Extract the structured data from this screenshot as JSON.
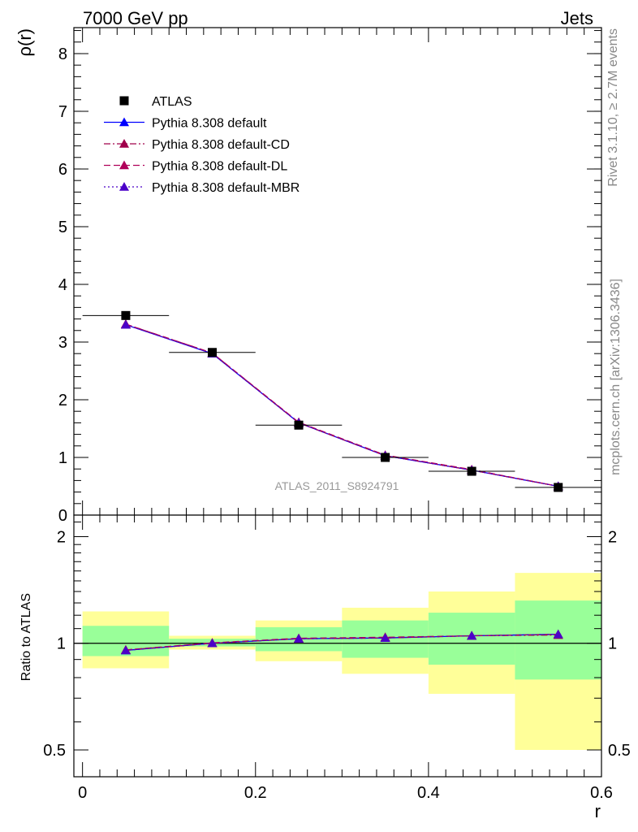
{
  "header": {
    "left": "7000 GeV pp",
    "right": "Jets"
  },
  "side_labels": {
    "top": "Rivet 3.1.10, ≥ 2.7M events",
    "bottom": "mcplots.cern.ch [arXiv:1306.3436]"
  },
  "watermark": "ATLAS_2011_S8924791",
  "legend": [
    {
      "label": "ATLAS",
      "color": "#000000",
      "marker": "square",
      "line": "none"
    },
    {
      "label": "Pythia 8.308 default",
      "color": "#0000ff",
      "marker": "triangle",
      "line": "solid"
    },
    {
      "label": "Pythia 8.308 default-CD",
      "color": "#a0004b",
      "marker": "triangle",
      "line": "dashdot"
    },
    {
      "label": "Pythia 8.308 default-DL",
      "color": "#b0005a",
      "marker": "triangle",
      "line": "dashed"
    },
    {
      "label": "Pythia 8.308 default-MBR",
      "color": "#4b00c8",
      "marker": "triangle",
      "line": "dotted"
    }
  ],
  "chart_data": [
    {
      "type": "line",
      "panel": "main",
      "ylabel": "ρ(r)",
      "xlim": [
        -0.01,
        0.6
      ],
      "ylim": [
        0,
        8.45
      ],
      "yticks": [
        0,
        1,
        2,
        3,
        4,
        5,
        6,
        7,
        8
      ],
      "x": [
        0.05,
        0.15,
        0.25,
        0.35,
        0.45,
        0.55
      ],
      "xerr": 0.05,
      "series": [
        {
          "name": "ATLAS",
          "values": [
            3.46,
            2.82,
            1.56,
            1.0,
            0.76,
            0.48
          ]
        },
        {
          "name": "Pythia 8.308 default",
          "values": [
            3.3,
            2.8,
            1.6,
            1.03,
            0.78,
            0.5
          ]
        },
        {
          "name": "Pythia 8.308 default-CD",
          "values": [
            3.31,
            2.81,
            1.6,
            1.03,
            0.78,
            0.5
          ]
        },
        {
          "name": "Pythia 8.308 default-DL",
          "values": [
            3.31,
            2.81,
            1.61,
            1.04,
            0.79,
            0.5
          ]
        },
        {
          "name": "Pythia 8.308 default-MBR",
          "values": [
            3.3,
            2.8,
            1.6,
            1.03,
            0.78,
            0.5
          ]
        }
      ]
    },
    {
      "type": "line",
      "panel": "ratio",
      "ylabel": "Ratio to ATLAS",
      "xlabel": "r",
      "xlim": [
        -0.01,
        0.6
      ],
      "ylim": [
        0.42,
        2.3
      ],
      "log_scale_y": true,
      "yticks": [
        0.5,
        1,
        2
      ],
      "xticks": [
        0,
        0.2,
        0.4,
        0.6
      ],
      "reference_line": 1,
      "bands": {
        "x_edges": [
          0.0,
          0.1,
          0.2,
          0.3,
          0.4,
          0.5,
          0.6
        ],
        "yellow": [
          [
            0.85,
            1.23
          ],
          [
            0.96,
            1.05
          ],
          [
            0.89,
            1.16
          ],
          [
            0.82,
            1.26
          ],
          [
            0.72,
            1.4
          ],
          [
            0.5,
            1.58
          ]
        ],
        "green": [
          [
            0.92,
            1.12
          ],
          [
            0.98,
            1.03
          ],
          [
            0.95,
            1.11
          ],
          [
            0.91,
            1.16
          ],
          [
            0.87,
            1.22
          ],
          [
            0.79,
            1.32
          ]
        ]
      },
      "x": [
        0.05,
        0.15,
        0.25,
        0.35,
        0.45,
        0.55
      ],
      "series": [
        {
          "name": "Pythia 8.308 default",
          "values": [
            0.955,
            1.0,
            1.03,
            1.035,
            1.05,
            1.06
          ]
        },
        {
          "name": "Pythia 8.308 default-CD",
          "values": [
            0.957,
            1.0,
            1.03,
            1.035,
            1.05,
            1.055
          ]
        },
        {
          "name": "Pythia 8.308 default-DL",
          "values": [
            0.958,
            1.003,
            1.033,
            1.04,
            1.05,
            1.06
          ]
        },
        {
          "name": "Pythia 8.308 default-MBR",
          "values": [
            0.955,
            1.0,
            1.03,
            1.035,
            1.05,
            1.06
          ]
        }
      ],
      "band_colors": {
        "yellow": "#ffff99",
        "green": "#99ff99"
      }
    }
  ]
}
